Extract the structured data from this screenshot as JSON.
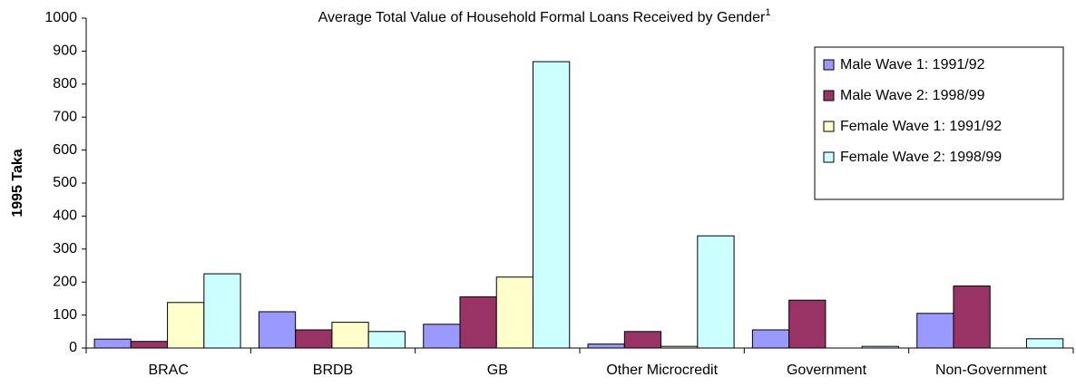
{
  "chart_data": {
    "type": "bar",
    "title": "Average Total Value of Household Formal Loans Received by Gender",
    "title_note": "1",
    "y_label": "1995 Taka",
    "categories": [
      "BRAC",
      "BRDB",
      "GB",
      "Other Microcredit",
      "Government",
      "Non-Government"
    ],
    "series": [
      {
        "name": "Male Wave 1: 1991/92",
        "color": "#9999ff",
        "values": [
          27,
          110,
          72,
          12,
          55,
          105
        ]
      },
      {
        "name": "Male Wave 2: 1998/99",
        "color": "#993366",
        "values": [
          20,
          55,
          155,
          50,
          145,
          188
        ]
      },
      {
        "name": "Female Wave 1: 1991/92",
        "color": "#ffffcc",
        "values": [
          138,
          78,
          215,
          5,
          0,
          0
        ]
      },
      {
        "name": "Female Wave 2: 1998/99",
        "color": "#ccffff",
        "values": [
          225,
          50,
          868,
          340,
          5,
          28
        ]
      }
    ],
    "ylim": [
      0,
      1000
    ],
    "yticks": [
      0,
      100,
      200,
      300,
      400,
      500,
      600,
      700,
      800,
      900,
      1000
    ],
    "grid": false,
    "legend": "upper right"
  }
}
